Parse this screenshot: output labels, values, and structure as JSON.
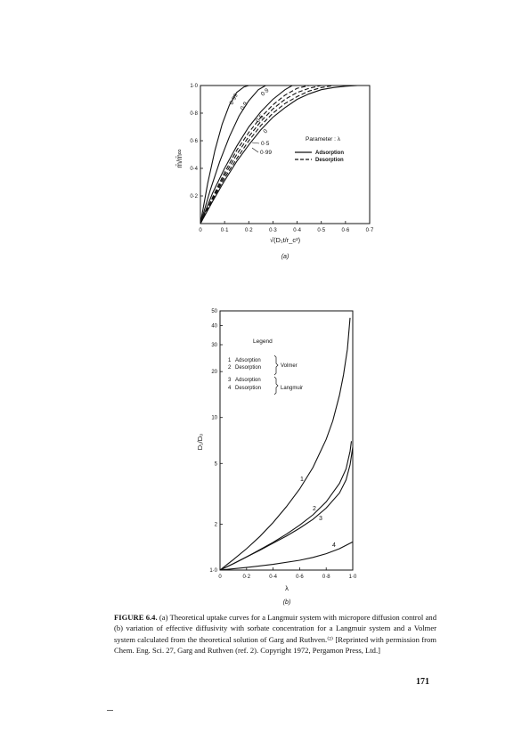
{
  "chart_data": [
    {
      "type": "line",
      "panel_label": "(a)",
      "ylabel": "m̄/m̄∞",
      "xlabel": "√(D₁t/r_c²)",
      "xlim": [
        0,
        0.7
      ],
      "ylim": [
        0,
        1.0
      ],
      "x_ticks": [
        "0",
        "0·1",
        "0·2",
        "0·3",
        "0·4",
        "0·5",
        "0·6",
        "0·7"
      ],
      "y_ticks": [
        "0·2",
        "0·4",
        "0·6",
        "0·8",
        "1·0"
      ],
      "x_tick_values": [
        0,
        0.1,
        0.2,
        0.3,
        0.4,
        0.5,
        0.6,
        0.7
      ],
      "y_tick_values": [
        0.2,
        0.4,
        0.6,
        0.8,
        1.0
      ],
      "legend": {
        "title": "Parameter : λ",
        "entries": [
          {
            "label": "Adsorption",
            "style": "solid"
          },
          {
            "label": "Desorption",
            "style": "dashed"
          }
        ]
      },
      "curve_labels": [
        "0·99",
        "0·9",
        "0·5",
        "0",
        "0·5",
        "0·9",
        "0·99"
      ],
      "series": [
        {
          "style": "solid",
          "x": [
            0,
            0.03,
            0.06,
            0.09,
            0.12,
            0.15,
            0.18,
            0.2
          ],
          "y": [
            0,
            0.29,
            0.53,
            0.72,
            0.86,
            0.95,
            0.99,
            1.0
          ]
        },
        {
          "style": "solid",
          "x": [
            0,
            0.04,
            0.08,
            0.12,
            0.16,
            0.2,
            0.24,
            0.27
          ],
          "y": [
            0,
            0.24,
            0.45,
            0.63,
            0.78,
            0.89,
            0.97,
            1.0
          ]
        },
        {
          "style": "solid",
          "x": [
            0,
            0.05,
            0.1,
            0.15,
            0.2,
            0.25,
            0.3,
            0.35,
            0.38
          ],
          "y": [
            0,
            0.22,
            0.4,
            0.56,
            0.7,
            0.81,
            0.9,
            0.97,
            1.0
          ]
        },
        {
          "style": "solid",
          "x": [
            0,
            0.05,
            0.1,
            0.15,
            0.2,
            0.25,
            0.3,
            0.35,
            0.4,
            0.45,
            0.5,
            0.55,
            0.6,
            0.65
          ],
          "y": [
            0,
            0.16,
            0.31,
            0.45,
            0.57,
            0.68,
            0.77,
            0.84,
            0.9,
            0.94,
            0.97,
            0.985,
            0.995,
            1.0
          ]
        },
        {
          "style": "dashed",
          "x": [
            0,
            0.05,
            0.1,
            0.15,
            0.2,
            0.25,
            0.3,
            0.35,
            0.4,
            0.45,
            0.5,
            0.55
          ],
          "y": [
            0,
            0.17,
            0.33,
            0.47,
            0.6,
            0.71,
            0.8,
            0.87,
            0.92,
            0.96,
            0.985,
            1.0
          ]
        },
        {
          "style": "dashed",
          "x": [
            0,
            0.05,
            0.1,
            0.15,
            0.2,
            0.25,
            0.3,
            0.35,
            0.4,
            0.45,
            0.5
          ],
          "y": [
            0,
            0.18,
            0.35,
            0.5,
            0.63,
            0.74,
            0.83,
            0.9,
            0.95,
            0.98,
            1.0
          ]
        },
        {
          "style": "dashed",
          "x": [
            0,
            0.05,
            0.1,
            0.15,
            0.2,
            0.25,
            0.3,
            0.35,
            0.4,
            0.45
          ],
          "y": [
            0,
            0.19,
            0.37,
            0.53,
            0.66,
            0.77,
            0.86,
            0.93,
            0.98,
            1.0
          ]
        }
      ],
      "grid": false
    },
    {
      "type": "line",
      "panel_label": "(b)",
      "ylabel": "D₁/D₀",
      "xlabel": "λ",
      "xlim": [
        0,
        1.0
      ],
      "ylim": [
        1.0,
        50
      ],
      "yscale": "log",
      "x_ticks": [
        "0",
        "0·2",
        "0·4",
        "0·6",
        "0·8",
        "1·0"
      ],
      "y_ticks": [
        "1·0",
        "2",
        "5",
        "10",
        "20",
        "30",
        "40",
        "50"
      ],
      "x_tick_values": [
        0,
        0.2,
        0.4,
        0.6,
        0.8,
        1.0
      ],
      "y_tick_values": [
        1,
        2,
        5,
        10,
        20,
        30,
        40,
        50
      ],
      "legend": {
        "title": "Legend",
        "entries": [
          {
            "num": "1",
            "label": "Adsorption"
          },
          {
            "num": "2",
            "label": "Desorption"
          },
          {
            "num": "3",
            "label": "Adsorption"
          },
          {
            "num": "4",
            "label": "Desorption"
          }
        ],
        "groups": [
          "Volmer",
          "Langmuir"
        ]
      },
      "series": [
        {
          "name": "1",
          "x": [
            0,
            0.1,
            0.2,
            0.3,
            0.4,
            0.5,
            0.6,
            0.7,
            0.8,
            0.85,
            0.9,
            0.93,
            0.96,
            0.98
          ],
          "y": [
            1,
            1.17,
            1.38,
            1.66,
            2.05,
            2.6,
            3.4,
            4.7,
            7.2,
            9.5,
            14,
            19,
            28,
            45
          ]
        },
        {
          "name": "2",
          "x": [
            0,
            0.1,
            0.2,
            0.3,
            0.4,
            0.5,
            0.6,
            0.7,
            0.8,
            0.9,
            0.95,
            0.98,
            0.99
          ],
          "y": [
            1,
            1.1,
            1.22,
            1.36,
            1.52,
            1.72,
            1.97,
            2.3,
            2.8,
            3.7,
            4.6,
            6.0,
            7.0
          ]
        },
        {
          "name": "3",
          "x": [
            0,
            0.1,
            0.2,
            0.3,
            0.4,
            0.5,
            0.6,
            0.7,
            0.8,
            0.9,
            0.95,
            0.98,
            0.99,
            1.0
          ],
          "y": [
            1,
            1.1,
            1.22,
            1.35,
            1.5,
            1.67,
            1.88,
            2.15,
            2.55,
            3.2,
            3.9,
            4.9,
            5.6,
            6.4
          ]
        },
        {
          "name": "4",
          "x": [
            0,
            0.2,
            0.4,
            0.6,
            0.7,
            0.8,
            0.9,
            1.0
          ],
          "y": [
            1,
            1.04,
            1.09,
            1.16,
            1.21,
            1.28,
            1.38,
            1.53
          ]
        }
      ],
      "curve_labels": [
        "1",
        "2",
        "3",
        "4"
      ],
      "grid": false
    }
  ],
  "caption": {
    "label": "FIGURE 6.4.",
    "text": "(a) Theoretical uptake curves for a Langmuir system with micropore diffusion control and (b) variation of effective diffusivity with sorbate concentration for a Langmuir system and a Volmer system calculated from the theoretical solution of Garg and Ruthven.⁽²⁾ [Reprinted with permission from Chem. Eng. Sci. 27, Garg and Ruthven (ref. 2). Copyright 1972, Pergamon Press, Ltd.]"
  },
  "page_number": "171"
}
